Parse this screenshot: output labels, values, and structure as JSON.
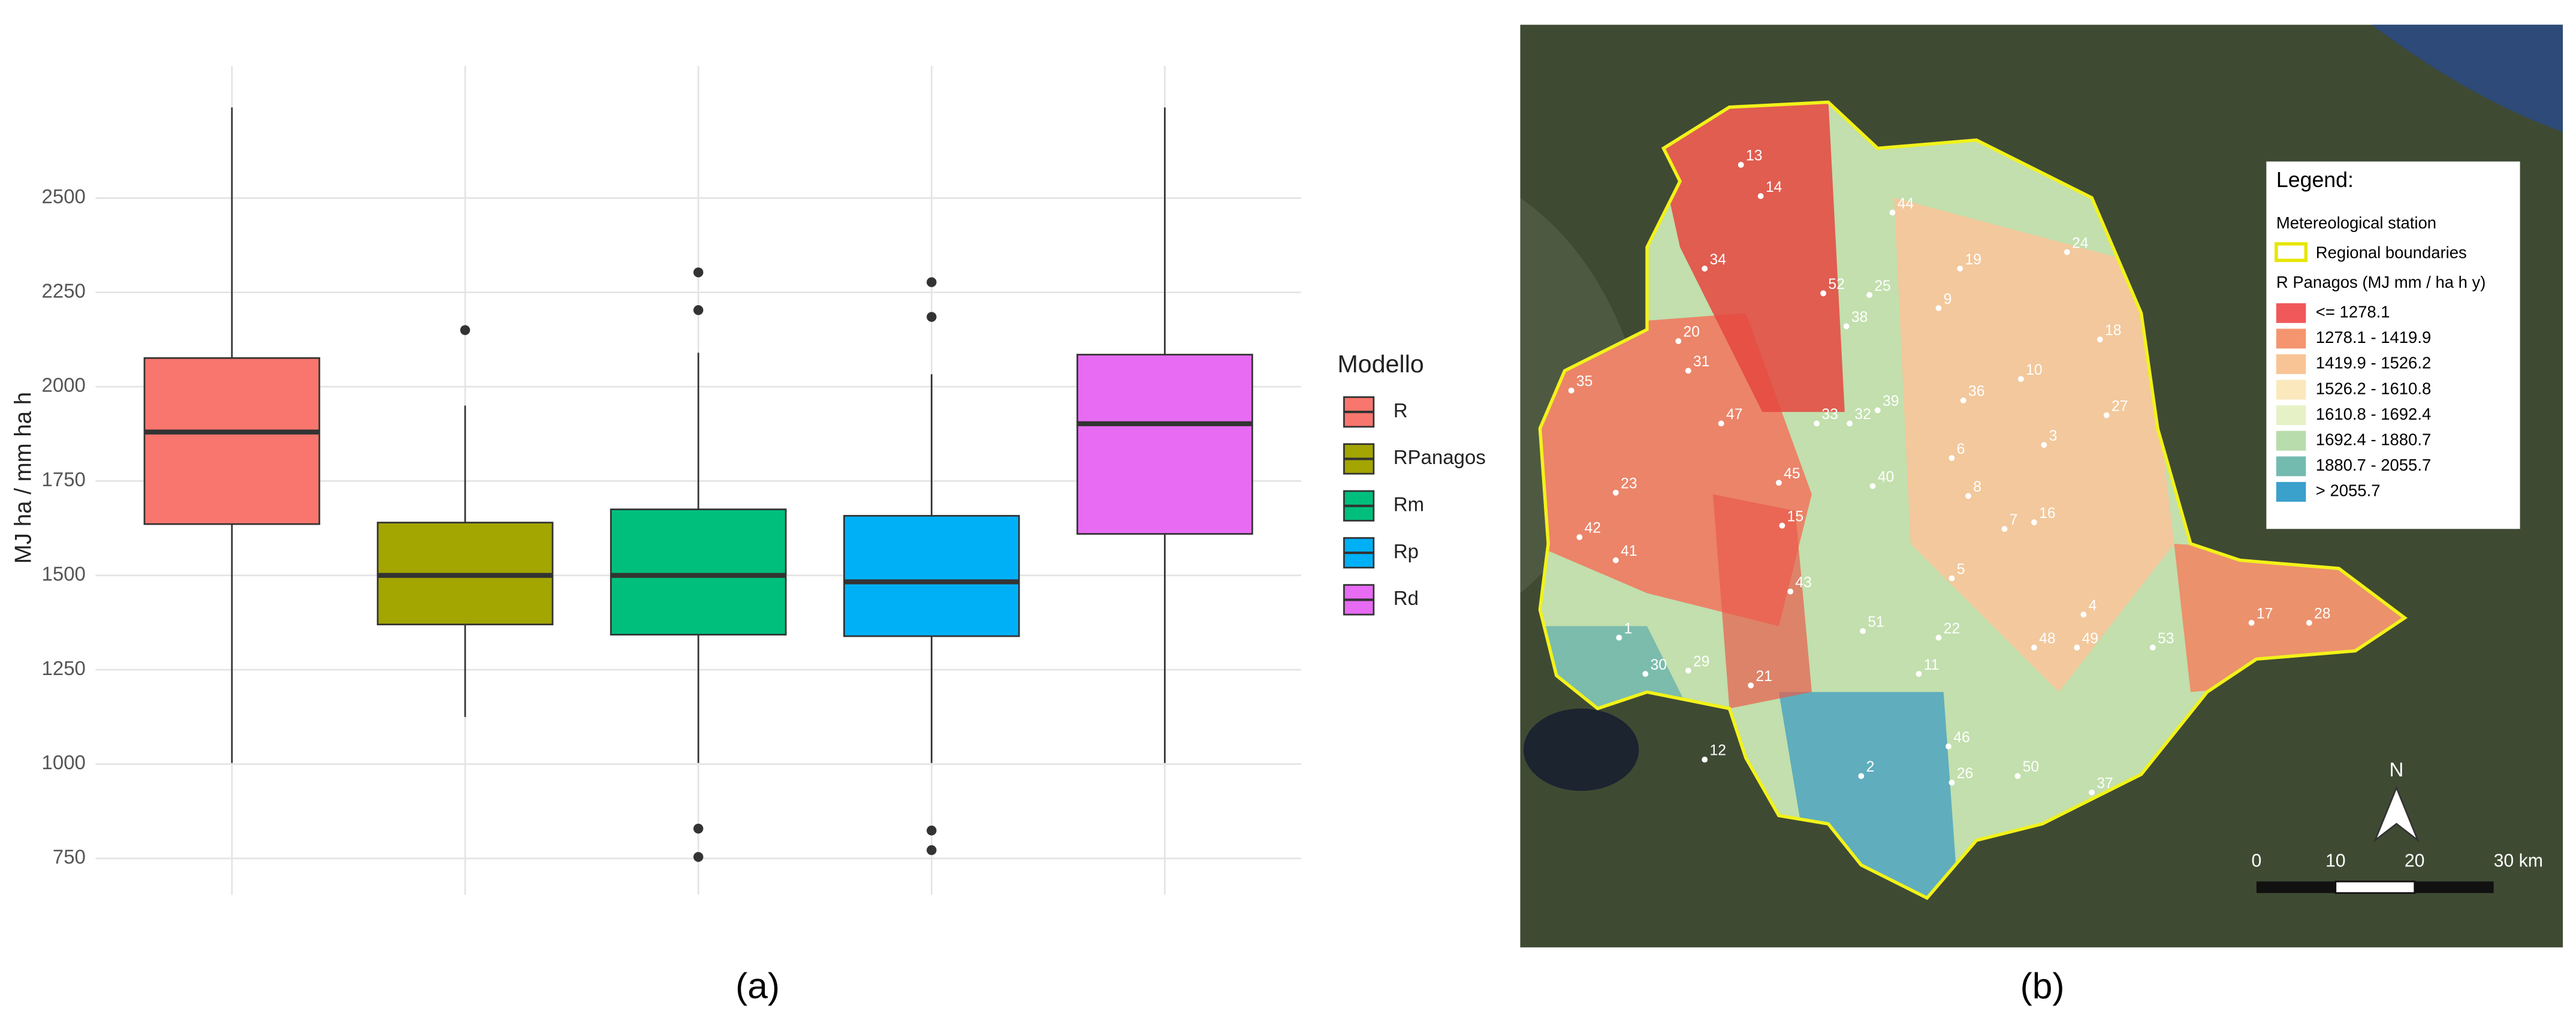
{
  "chart_data": {
    "type": "box",
    "y_label": "MJ ha / mm ha h",
    "legend_title": "Modello",
    "categories": [
      "R",
      "RPanagos",
      "Rm",
      "Rp",
      "Rd"
    ],
    "series": [
      {
        "name": "R",
        "color": "#F8766D",
        "min": 1003,
        "q1": 1636,
        "median": 1880,
        "q3": 2076,
        "max": 2740,
        "outliers": []
      },
      {
        "name": "RPanagos",
        "color": "#A3A500",
        "min": 1125,
        "q1": 1370,
        "median": 1500,
        "q3": 1640,
        "max": 1950,
        "outliers": [
          2150
        ]
      },
      {
        "name": "Rm",
        "color": "#00BF7D",
        "min": 1003,
        "q1": 1343,
        "median": 1500,
        "q3": 1675,
        "max": 2090,
        "outliers": [
          2303,
          2203,
          829,
          754
        ]
      },
      {
        "name": "Rp",
        "color": "#00B0F6",
        "min": 1003,
        "q1": 1339,
        "median": 1483,
        "q3": 1658,
        "max": 2033,
        "outliers": [
          2277,
          2185,
          824,
          772
        ]
      },
      {
        "name": "Rd",
        "color": "#E76BF3",
        "min": 1003,
        "q1": 1610,
        "median": 1902,
        "q3": 2085,
        "max": 2740,
        "outliers": []
      }
    ],
    "ylim": [
      654,
      2850
    ],
    "yticks": [
      750,
      1000,
      1250,
      1500,
      1750,
      2000,
      2250,
      2500
    ],
    "grid": true
  },
  "captions": [
    "(a)",
    "(b)"
  ],
  "map": {
    "legend_title": "Legend:",
    "station_label": "Metereological station",
    "boundary_label": "Regional boundaries",
    "class_title": "R Panagos (MJ mm / ha h y)",
    "classes": [
      {
        "label": "<= 1278.1",
        "color": "#f1585a"
      },
      {
        "label": "1278.1 - 1419.9",
        "color": "#f4956f"
      },
      {
        "label": "1419.9 - 1526.2",
        "color": "#f8c496"
      },
      {
        "label": "1526.2 - 1610.8",
        "color": "#fbe9bd"
      },
      {
        "label": "1610.8 - 1692.4",
        "color": "#e6f2c6"
      },
      {
        "label": "1692.4 - 1880.7",
        "color": "#b8dcac"
      },
      {
        "label": "1880.7 - 2055.7",
        "color": "#74bbaf"
      },
      {
        "label": "> 2055.7",
        "color": "#3aa0cc"
      }
    ],
    "stations": [
      "13",
      "14",
      "44",
      "24",
      "19",
      "34",
      "52",
      "25",
      "9",
      "38",
      "18",
      "20",
      "31",
      "10",
      "35",
      "36",
      "27",
      "47",
      "33",
      "32",
      "39",
      "3",
      "6",
      "45",
      "40",
      "8",
      "23",
      "15",
      "7",
      "16",
      "42",
      "41",
      "5",
      "43",
      "4",
      "17",
      "28",
      "1",
      "51",
      "22",
      "48",
      "49",
      "53",
      "30",
      "29",
      "11",
      "21",
      "46",
      "12",
      "2",
      "26",
      "50",
      "37"
    ],
    "north": "N",
    "scale_labels": [
      "0",
      "10",
      "20",
      "30 km"
    ]
  }
}
